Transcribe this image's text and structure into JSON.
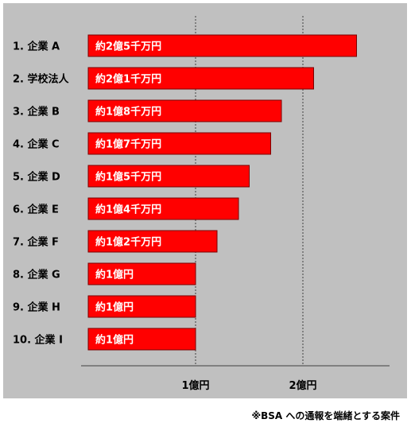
{
  "chart_data": {
    "type": "bar",
    "orientation": "horizontal",
    "categories": [
      "1. 企業 A",
      "2. 学校法人",
      "3. 企業 B",
      "4. 企業 C",
      "5. 企業 D",
      "6. 企業 E",
      "7. 企業 F",
      "8. 企業 G",
      "9. 企業 H",
      "10. 企業 I"
    ],
    "values": [
      2.5,
      2.1,
      1.8,
      1.7,
      1.5,
      1.4,
      1.2,
      1.0,
      1.0,
      1.0
    ],
    "data_labels": [
      "約2億5千万円",
      "約2億1千万円",
      "約1億8千万円",
      "約1億7千万円",
      "約1億5千万円",
      "約1億4千万円",
      "約1億2千万円",
      "約1億円",
      "約1億円",
      "約1億円"
    ],
    "x_ticks": [
      {
        "value": 1,
        "label": "1億円"
      },
      {
        "value": 2,
        "label": "2億円"
      }
    ],
    "xlim": [
      0,
      3
    ],
    "grid": "vertical dashed at tick values",
    "title": "",
    "xlabel": "",
    "ylabel": ""
  },
  "colors": {
    "bar_fill": "#ff0000",
    "bar_stroke": "#7a0000",
    "plot_background": "#c0c0c0",
    "gridline": "#404040",
    "axis_line": "#404040"
  },
  "footnote": "※BSA への通報を端緒とする案件"
}
